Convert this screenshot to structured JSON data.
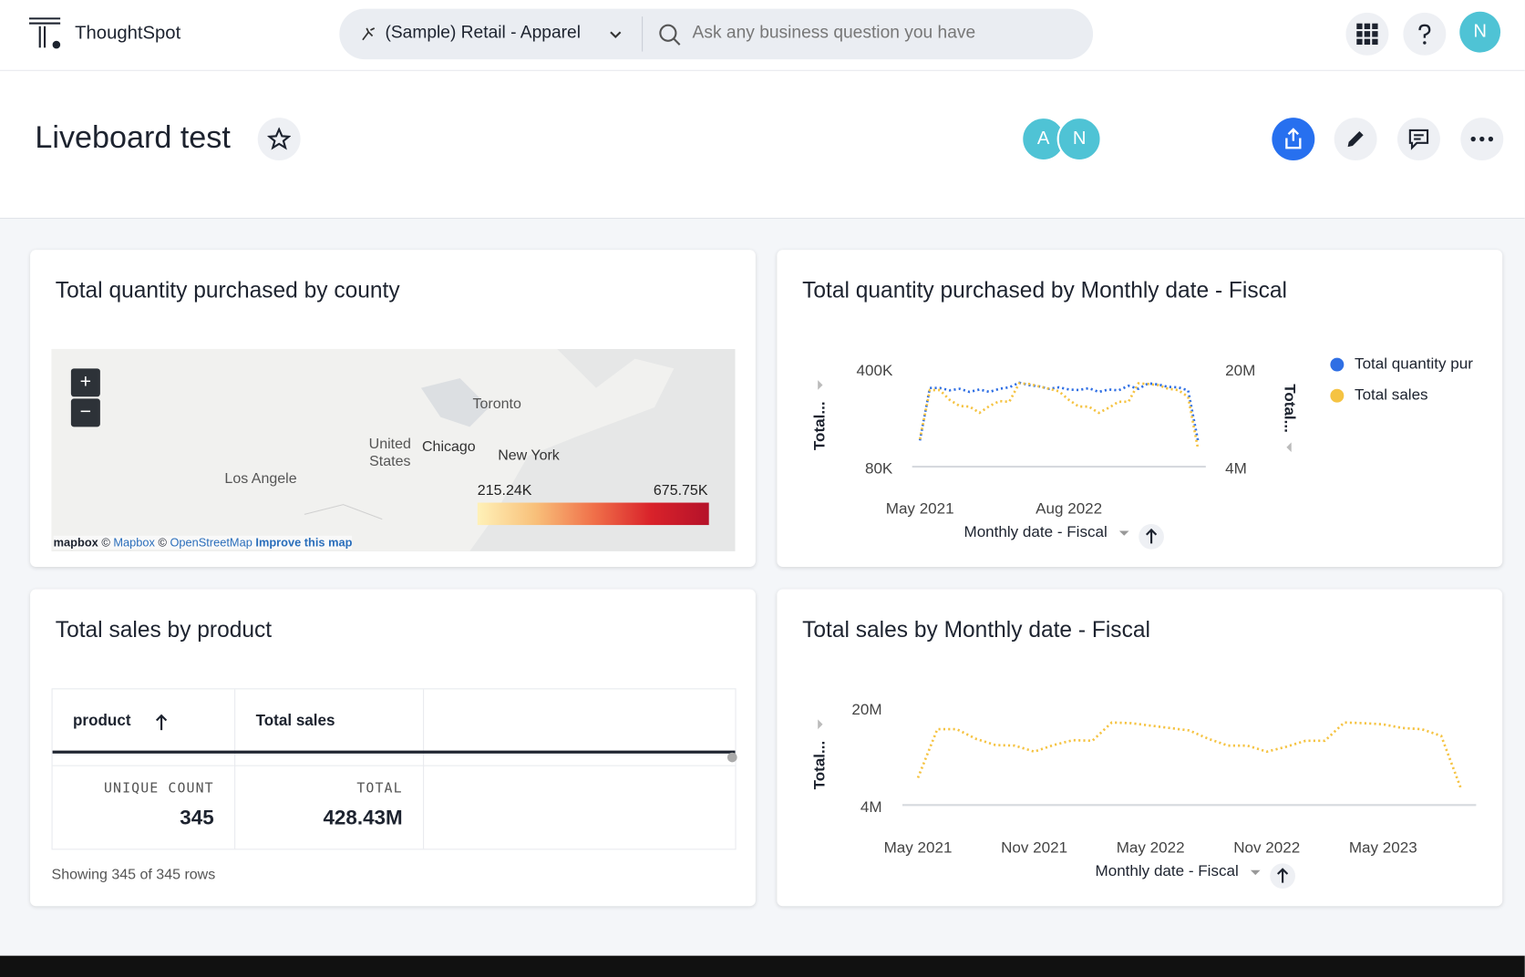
{
  "header": {
    "logo": "ThoughtSpot",
    "data_source": "(Sample) Retail - Apparel",
    "search_placeholder": "Ask any business question you have",
    "user_initial": "N"
  },
  "liveboard": {
    "title": "Liveboard test",
    "viewers": [
      "A",
      "N"
    ]
  },
  "map_tile": {
    "title": "Total quantity purchased by county",
    "zoom": [
      "+",
      "−"
    ],
    "places": [
      "Toronto",
      "United States",
      "Chicago",
      "New York",
      "Los Angele"
    ],
    "legend": {
      "min": "215.24K",
      "max": "675.75K"
    },
    "attribution": [
      "mapbox",
      "©",
      "Mapbox",
      "©",
      "OpenStreetMap",
      "Improve this map"
    ]
  },
  "table_tile": {
    "title": "Total sales by product",
    "columns": [
      "product",
      "Total sales"
    ],
    "summary": [
      {
        "label": "UNIQUE COUNT",
        "value": "345"
      },
      {
        "label": "TOTAL",
        "value": "428.43M"
      }
    ],
    "footer": "Showing 345 of 345 rows"
  },
  "chart_data": [
    {
      "type": "line",
      "title": "Total quantity purchased by Monthly date - Fiscal",
      "x_axis_label": "Monthly date - Fiscal",
      "y_axis_label": "Total...",
      "y2_axis_label": "Total...",
      "categories": [
        "May 2021",
        null,
        null,
        null,
        null,
        null,
        null,
        null,
        null,
        null,
        null,
        null,
        null,
        null,
        null,
        "Aug 2022",
        null,
        null,
        null,
        null,
        null,
        null,
        null,
        null,
        null,
        null,
        null,
        null,
        null
      ],
      "series": [
        {
          "name": "Total quantity pur",
          "color": "#2f6fe4",
          "values": [
            172000,
            343000,
            343000,
            335000,
            340000,
            330000,
            338000,
            330000,
            340000,
            345000,
            360000,
            352000,
            348000,
            340000,
            345000,
            338000,
            336000,
            342000,
            330000,
            338000,
            335000,
            350000,
            340000,
            358000,
            354000,
            346000,
            345000,
            335000,
            170000
          ]
        },
        {
          "name": "Total sales",
          "color": "#f5c342",
          "axis": "y2",
          "values": [
            8800000,
            16800000,
            16800000,
            15200000,
            14200000,
            14100000,
            13100000,
            14200000,
            15000000,
            14900000,
            17900000,
            17800000,
            17400000,
            17000000,
            16600000,
            15200000,
            14100000,
            14100000,
            13100000,
            13900000,
            14900000,
            14900000,
            17900000,
            17800000,
            17600000,
            17000000,
            16800000,
            15700000,
            7200000
          ]
        }
      ],
      "ylim": [
        80000,
        400000
      ],
      "yticks": [
        {
          "value": 80000,
          "label": "80K"
        },
        {
          "value": 400000,
          "label": "400K"
        }
      ],
      "y2lim": [
        4000000,
        20000000
      ],
      "y2ticks": [
        {
          "value": 4000000,
          "label": "4M"
        },
        {
          "value": 20000000,
          "label": "20M"
        }
      ],
      "legend": "right"
    },
    {
      "type": "line",
      "title": "Total sales by Monthly date - Fiscal",
      "x_axis_label": "Monthly date - Fiscal",
      "y_axis_label": "Total...",
      "categories": [
        "May 2021",
        null,
        null,
        null,
        null,
        null,
        "Nov 2021",
        null,
        null,
        null,
        null,
        null,
        "May 2022",
        null,
        null,
        null,
        null,
        null,
        "Nov 2022",
        null,
        null,
        null,
        null,
        null,
        "May 2023",
        null,
        null,
        null,
        null
      ],
      "series": [
        {
          "color": "#f5c342",
          "values": [
            8800000,
            16800000,
            16800000,
            15200000,
            14200000,
            14100000,
            13100000,
            14200000,
            15000000,
            14900000,
            17900000,
            17800000,
            17400000,
            17000000,
            16600000,
            15200000,
            14100000,
            14100000,
            13100000,
            13900000,
            14900000,
            14900000,
            17900000,
            17800000,
            17600000,
            17000000,
            16800000,
            15700000,
            7200000
          ]
        }
      ],
      "ylim": [
        4000000,
        20000000
      ],
      "yticks": [
        {
          "value": 4000000,
          "label": "4M"
        },
        {
          "value": 20000000,
          "label": "20M"
        }
      ]
    }
  ]
}
